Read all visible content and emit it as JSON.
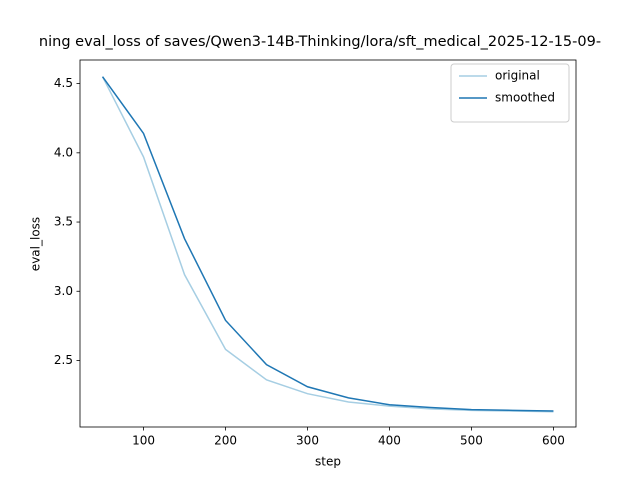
{
  "chart_data": {
    "type": "line",
    "title": "ning eval_loss of saves/Qwen3-14B-Thinking/lora/sft_medical_2025-12-15-09-",
    "x_label": "step",
    "y_label": "eval_loss",
    "x": [
      50,
      100,
      150,
      200,
      250,
      300,
      350,
      400,
      450,
      500,
      550,
      600
    ],
    "series": [
      {
        "name": "original",
        "color": "#a6cee3",
        "values": [
          4.55,
          3.97,
          3.12,
          2.58,
          2.36,
          2.26,
          2.2,
          2.17,
          2.15,
          2.14,
          2.135,
          2.13
        ]
      },
      {
        "name": "smoothed",
        "color": "#1f77b4",
        "values": [
          4.55,
          4.14,
          3.38,
          2.79,
          2.47,
          2.31,
          2.23,
          2.18,
          2.16,
          2.145,
          2.14,
          2.135
        ]
      }
    ],
    "xlim": [
      22.5,
      627.5
    ],
    "ylim": [
      2.0195,
      4.6705
    ],
    "xticks": [
      100,
      200,
      300,
      400,
      500,
      600
    ],
    "yticks": [
      2.5,
      {
        "value": 3,
        "label": "3.0"
      },
      3.5,
      {
        "value": 4,
        "label": "4.0"
      },
      4.5
    ],
    "legend": "upper right",
    "grid": false
  }
}
